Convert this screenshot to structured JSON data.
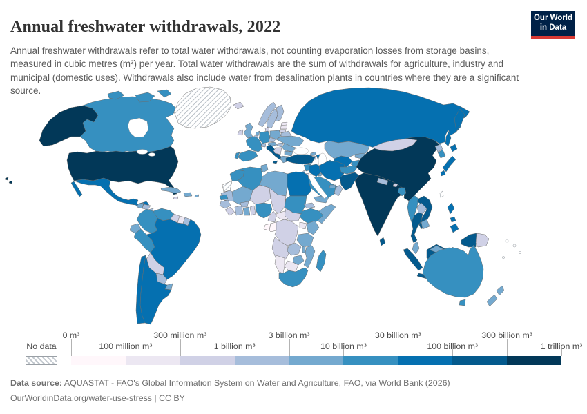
{
  "header": {
    "title": "Annual freshwater withdrawals, 2022",
    "subtitle": "Annual freshwater withdrawals refer to total water withdrawals, not counting evaporation losses from storage basins, measured in cubic metres (m³) per year. Total water withdrawals are the sum of withdrawals for agriculture, industry and municipal (domestic uses). Withdrawals also include water from desalination plants in countries where they are a significant source."
  },
  "logo": {
    "line1": "Our World",
    "line2": "in Data",
    "bg": "#002147",
    "accent": "#d93a34"
  },
  "legend": {
    "no_data_label": "No data",
    "colors": [
      "#fff7fb",
      "#ece7f2",
      "#d0d1e6",
      "#a6bddb",
      "#74a9cf",
      "#3690c0",
      "#0570b0",
      "#045a8d",
      "#023858"
    ],
    "ticks": [
      {
        "label": "0 m³",
        "pos": 0,
        "row": "top"
      },
      {
        "label": "100 million m³",
        "pos": 1,
        "row": "bottom"
      },
      {
        "label": "300 million m³",
        "pos": 2,
        "row": "top"
      },
      {
        "label": "1 billion m³",
        "pos": 3,
        "row": "bottom"
      },
      {
        "label": "3 billion m³",
        "pos": 4,
        "row": "top"
      },
      {
        "label": "10 billion m³",
        "pos": 5,
        "row": "bottom"
      },
      {
        "label": "30 billion m³",
        "pos": 6,
        "row": "top"
      },
      {
        "label": "100 billion m³",
        "pos": 7,
        "row": "bottom"
      },
      {
        "label": "300 billion m³",
        "pos": 8,
        "row": "top"
      },
      {
        "label": "1 trillion m³",
        "pos": 9,
        "row": "bottom"
      }
    ]
  },
  "footer": {
    "source_label": "Data source:",
    "source_text": " AQUASTAT - FAO's Global Information System on Water and Agriculture, FAO, via World Bank (2026)",
    "link_line": "OurWorldinData.org/water-use-stress | CC BY"
  },
  "map": {
    "border_color": "#6d6d6d",
    "sea_color": "#ffffff",
    "regions": {
      "United States": 8,
      "Canada": 5,
      "Greenland": -1,
      "Mexico": 6,
      "Guatemala": 4,
      "Honduras": 3,
      "Nicaragua": 3,
      "Costa Rica": 4,
      "Panama": 4,
      "Cuba": 4,
      "Dominican Republic": 4,
      "Jamaica": 2,
      "Puerto Rico": 4,
      "Colombia": 5,
      "Venezuela": 5,
      "Guyana": 2,
      "Suriname": 1,
      "French Guiana": 3,
      "Ecuador": 4,
      "Peru": 5,
      "Brazil": 6,
      "Bolivia": 2,
      "Paraguay": 3,
      "Uruguay": 4,
      "Chile": 6,
      "Argentina": 6,
      "Iceland": 2,
      "Ireland": 2,
      "United Kingdom": 4,
      "Norway": 3,
      "Sweden": 3,
      "Finland": 3,
      "Estonia": 1,
      "Latvia": 1,
      "Lithuania": 2,
      "Denmark": 2,
      "Netherlands": 4,
      "Belgium": 3,
      "Germany": 5,
      "Poland": 4,
      "Belarus": 3,
      "Ukraine": 4,
      "Czechia": 3,
      "Austria": 4,
      "Switzerland": 3,
      "France": 5,
      "Spain": 5,
      "Portugal": 5,
      "Italy": 7,
      "Hungary": 3,
      "Romania": 4,
      "Serbia": 2,
      "Bulgaria": 4,
      "Greece": 4,
      "Russia": 6,
      "Turkey": 7,
      "Georgia": 4,
      "Azerbaijan": 6,
      "Armenia": 3,
      "Morocco": 5,
      "Western Sahara": -1,
      "Algeria": 5,
      "Tunisia": 4,
      "Libya": 4,
      "Egypt": 6,
      "Mauritania": 3,
      "Mali": 4,
      "Niger": 2,
      "Chad": 2,
      "Sudan": 5,
      "Eritrea": 3,
      "Ethiopia": 5,
      "Somalia": 4,
      "Senegal": 5,
      "Guinea": 3,
      "Sierra Leone": 2,
      "Ivory Coast": 3,
      "Burkina Faso": 3,
      "Ghana": 4,
      "Benin": 2,
      "Nigeria": 5,
      "Cameroon": 2,
      "Central African Republic": 1,
      "South Sudan": 2,
      "Gabon": 0,
      "Congo": 0,
      "DR Congo": 2,
      "Uganda": 1,
      "Kenya": 4,
      "Tanzania": 4,
      "Angola": 2,
      "Zambia": 3,
      "Malawi": 4,
      "Mozambique": 4,
      "Zimbabwe": 4,
      "Botswana": 1,
      "Namibia": 1,
      "South Africa": 5,
      "Madagascar": 5,
      "Syria": 5,
      "Iraq": 6,
      "Iran": 6,
      "Lebanon": 3,
      "Israel": 3,
      "Jordan": 2,
      "Kuwait": 4,
      "Saudi Arabia": 5,
      "Yemen": 4,
      "Oman": 3,
      "United Arab Emirates": 4,
      "Kazakhstan": 4,
      "Uzbekistan": 6,
      "Turkmenistan": 5,
      "Kyrgyzstan": 4,
      "Tajikistan": 5,
      "Afghanistan": 5,
      "Pakistan": 7,
      "India": 8,
      "Nepal": 3,
      "Bhutan": 2,
      "Bangladesh": 5,
      "Sri Lanka": 7,
      "China": 8,
      "Mongolia": 2,
      "Taiwan": -2,
      "North Korea": 3,
      "South Korea": 5,
      "Japan": 6,
      "Myanmar": 5,
      "Laos": 3,
      "Vietnam": 7,
      "Thailand": 7,
      "Cambodia": 4,
      "Malaysia": 4,
      "Indonesia": 7,
      "Papua New Guinea": 2,
      "Philippines": 6,
      "Australia": 5,
      "New Zealand": 4,
      "Fiji": -2
    }
  }
}
